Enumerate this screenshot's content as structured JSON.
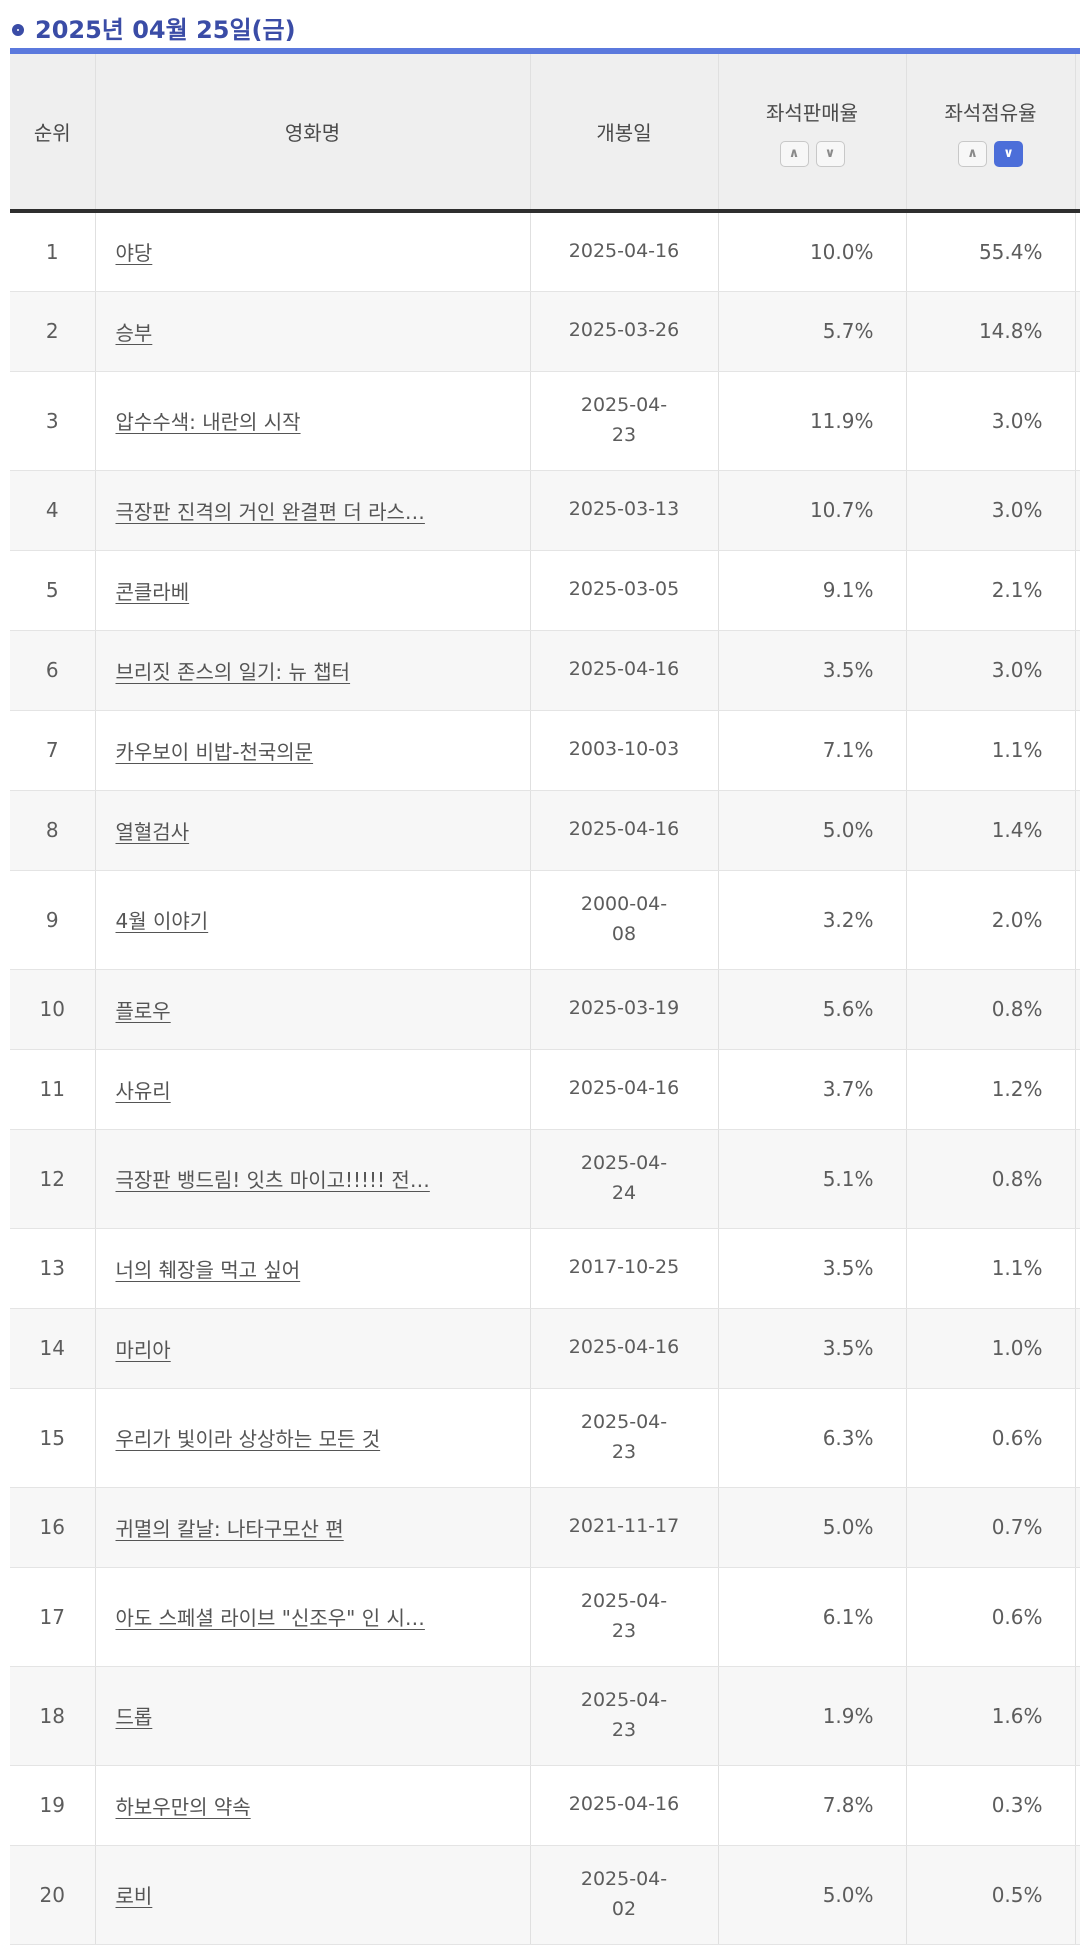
{
  "page_title": "2025년 04월 25일(금)",
  "icons": {
    "title_bullet": "ring-icon",
    "sort_up": "∧",
    "sort_down": "∨"
  },
  "colors": {
    "title_blue": "#3a4ca6",
    "table_top_border": "#5b79dd",
    "active_sort_blue": "#4c6ed9",
    "header_bg": "#efefef",
    "zebra_bg": "#f7f7f7",
    "header_border_dark": "#2e2e2e",
    "cell_border": "#e4e4e4",
    "text_gray": "#5c5c5c"
  },
  "table": {
    "columns": {
      "rank": "순위",
      "title": "영화명",
      "release_date": "개봉일",
      "seat_sales_rate": "좌석판매율",
      "seat_occupancy_rate": "좌석점유율"
    },
    "sort_state": {
      "seat_sales_rate": null,
      "seat_occupancy_rate": "desc"
    },
    "rows": [
      {
        "rank": 1,
        "title": "야당",
        "date": "2025-04-16",
        "date_wrap": false,
        "seat_sales_rate": "10.0%",
        "seat_occupancy_rate": "55.4%"
      },
      {
        "rank": 2,
        "title": "승부",
        "date": "2025-03-26",
        "date_wrap": false,
        "seat_sales_rate": "5.7%",
        "seat_occupancy_rate": "14.8%"
      },
      {
        "rank": 3,
        "title": "압수수색: 내란의 시작",
        "date": "2025-04-23",
        "date_wrap": true,
        "seat_sales_rate": "11.9%",
        "seat_occupancy_rate": "3.0%"
      },
      {
        "rank": 4,
        "title": "극장판 진격의 거인 완결편 더 라스…",
        "date": "2025-03-13",
        "date_wrap": false,
        "seat_sales_rate": "10.7%",
        "seat_occupancy_rate": "3.0%"
      },
      {
        "rank": 5,
        "title": "콘클라베",
        "date": "2025-03-05",
        "date_wrap": false,
        "seat_sales_rate": "9.1%",
        "seat_occupancy_rate": "2.1%"
      },
      {
        "rank": 6,
        "title": "브리짓 존스의 일기: 뉴 챕터",
        "date": "2025-04-16",
        "date_wrap": false,
        "seat_sales_rate": "3.5%",
        "seat_occupancy_rate": "3.0%"
      },
      {
        "rank": 7,
        "title": "카우보이 비밥-천국의문",
        "date": "2003-10-03",
        "date_wrap": false,
        "seat_sales_rate": "7.1%",
        "seat_occupancy_rate": "1.1%"
      },
      {
        "rank": 8,
        "title": "열혈검사",
        "date": "2025-04-16",
        "date_wrap": false,
        "seat_sales_rate": "5.0%",
        "seat_occupancy_rate": "1.4%"
      },
      {
        "rank": 9,
        "title": "4월 이야기",
        "date": "2000-04-08",
        "date_wrap": true,
        "seat_sales_rate": "3.2%",
        "seat_occupancy_rate": "2.0%"
      },
      {
        "rank": 10,
        "title": "플로우",
        "date": "2025-03-19",
        "date_wrap": false,
        "seat_sales_rate": "5.6%",
        "seat_occupancy_rate": "0.8%"
      },
      {
        "rank": 11,
        "title": "사유리",
        "date": "2025-04-16",
        "date_wrap": false,
        "seat_sales_rate": "3.7%",
        "seat_occupancy_rate": "1.2%"
      },
      {
        "rank": 12,
        "title": "극장판 뱅드림! 잇츠 마이고!!!!! 전…",
        "date": "2025-04-24",
        "date_wrap": true,
        "seat_sales_rate": "5.1%",
        "seat_occupancy_rate": "0.8%"
      },
      {
        "rank": 13,
        "title": "너의 췌장을 먹고 싶어",
        "date": "2017-10-25",
        "date_wrap": false,
        "seat_sales_rate": "3.5%",
        "seat_occupancy_rate": "1.1%"
      },
      {
        "rank": 14,
        "title": "마리아",
        "date": "2025-04-16",
        "date_wrap": false,
        "seat_sales_rate": "3.5%",
        "seat_occupancy_rate": "1.0%"
      },
      {
        "rank": 15,
        "title": "우리가 빛이라 상상하는 모든 것",
        "date": "2025-04-23",
        "date_wrap": true,
        "seat_sales_rate": "6.3%",
        "seat_occupancy_rate": "0.6%"
      },
      {
        "rank": 16,
        "title": "귀멸의 칼날: 나타구모산 편",
        "date": "2021-11-17",
        "date_wrap": false,
        "seat_sales_rate": "5.0%",
        "seat_occupancy_rate": "0.7%"
      },
      {
        "rank": 17,
        "title": "아도 스페셜 라이브 \"신조우\" 인 시…",
        "date": "2025-04-23",
        "date_wrap": true,
        "seat_sales_rate": "6.1%",
        "seat_occupancy_rate": "0.6%"
      },
      {
        "rank": 18,
        "title": "드롭",
        "date": "2025-04-23",
        "date_wrap": true,
        "seat_sales_rate": "1.9%",
        "seat_occupancy_rate": "1.6%"
      },
      {
        "rank": 19,
        "title": "하보우만의 약속",
        "date": "2025-04-16",
        "date_wrap": false,
        "seat_sales_rate": "7.8%",
        "seat_occupancy_rate": "0.3%"
      },
      {
        "rank": 20,
        "title": "로비",
        "date": "2025-04-02",
        "date_wrap": true,
        "seat_sales_rate": "5.0%",
        "seat_occupancy_rate": "0.5%"
      }
    ]
  },
  "chart_data": {
    "type": "table",
    "title": "2025년 04월 25일(금)",
    "columns": [
      "순위",
      "영화명",
      "개봉일",
      "좌석판매율",
      "좌석점유율"
    ],
    "sorted_by": "좌석점유율 내림차순"
  }
}
